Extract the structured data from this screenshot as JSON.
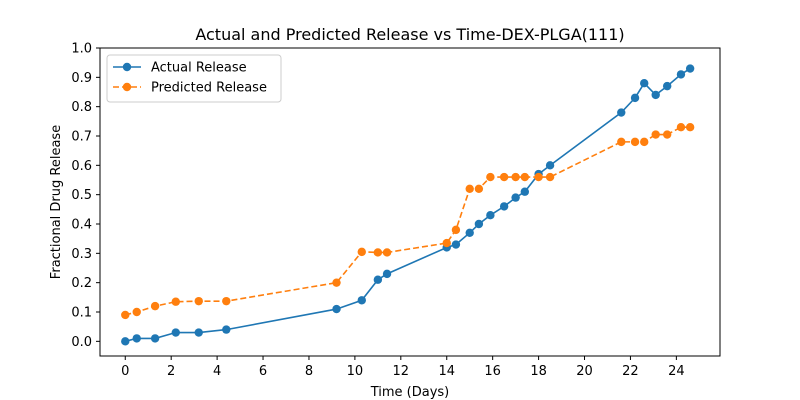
{
  "chart_data": {
    "type": "line",
    "title": "Actual and Predicted Release vs Time-DEX-PLGA(111)",
    "xlabel": "Time (Days)",
    "ylabel": "Fractional Drug Release",
    "xlim": [
      -1.1,
      25.9
    ],
    "ylim": [
      -0.05,
      1.0
    ],
    "xticks": [
      0,
      2,
      4,
      6,
      8,
      10,
      12,
      14,
      16,
      18,
      20,
      22,
      24
    ],
    "xtick_labels": [
      "0",
      "2",
      "4",
      "6",
      "8",
      "10",
      "12",
      "14",
      "16",
      "18",
      "20",
      "22",
      "24"
    ],
    "yticks": [
      0.0,
      0.1,
      0.2,
      0.3,
      0.4,
      0.5,
      0.6,
      0.7,
      0.8,
      0.9,
      1.0
    ],
    "ytick_labels": [
      "0.0",
      "0.1",
      "0.2",
      "0.3",
      "0.4",
      "0.5",
      "0.6",
      "0.7",
      "0.8",
      "0.9",
      "1.0"
    ],
    "grid": false,
    "legend_position": "upper-left",
    "series": [
      {
        "name": "Actual Release",
        "color": "#1f77b4",
        "line_style": "solid",
        "x": [
          0,
          0.5,
          1.3,
          2.2,
          3.2,
          4.4,
          9.2,
          10.3,
          11.0,
          11.4,
          14.0,
          14.4,
          15.0,
          15.4,
          15.9,
          16.5,
          17.0,
          17.4,
          18.0,
          18.5,
          21.6,
          22.2,
          22.6,
          23.1,
          23.6,
          24.2,
          24.6
        ],
        "y": [
          0.0,
          0.01,
          0.01,
          0.03,
          0.03,
          0.04,
          0.11,
          0.14,
          0.21,
          0.23,
          0.32,
          0.33,
          0.37,
          0.4,
          0.43,
          0.46,
          0.49,
          0.51,
          0.57,
          0.6,
          0.78,
          0.83,
          0.88,
          0.84,
          0.87,
          0.91,
          0.93
        ]
      },
      {
        "name": "Predicted Release",
        "color": "#ff7f0e",
        "line_style": "dashed",
        "x": [
          0,
          0.5,
          1.3,
          2.2,
          3.2,
          4.4,
          9.2,
          10.3,
          11.0,
          11.4,
          14.0,
          14.4,
          15.0,
          15.4,
          15.9,
          16.5,
          17.0,
          17.4,
          18.0,
          18.5,
          21.6,
          22.2,
          22.6,
          23.1,
          23.6,
          24.2,
          24.6
        ],
        "y": [
          0.09,
          0.1,
          0.12,
          0.135,
          0.137,
          0.137,
          0.2,
          0.305,
          0.303,
          0.303,
          0.335,
          0.38,
          0.52,
          0.52,
          0.56,
          0.56,
          0.56,
          0.56,
          0.56,
          0.56,
          0.68,
          0.68,
          0.68,
          0.705,
          0.705,
          0.73,
          0.73
        ]
      }
    ]
  }
}
